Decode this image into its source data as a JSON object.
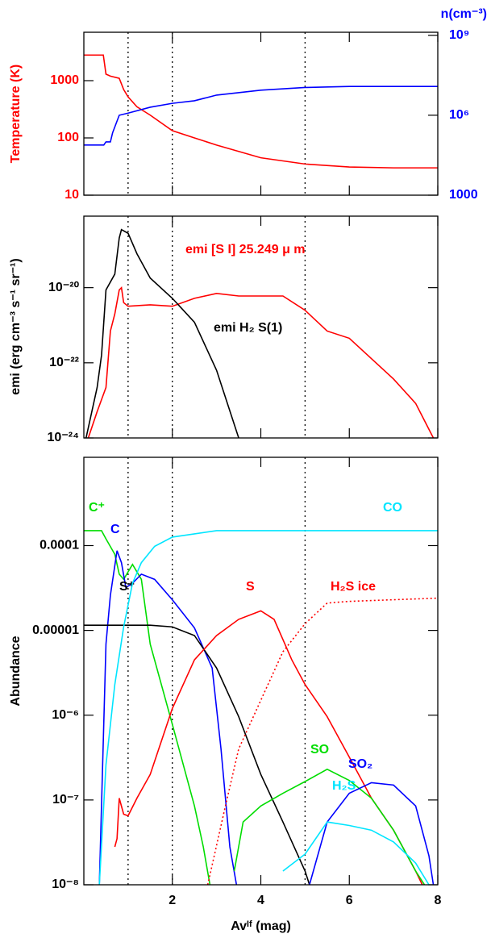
{
  "chart_data": [
    {
      "type": "line",
      "log_y": true,
      "ylabel": "Temperature (K)",
      "ylabel_color": "#ff0000",
      "y2label": "n(cm⁻³)",
      "y2label_color": "#0000ff",
      "xlim": [
        0,
        8
      ],
      "xticks": [
        2,
        4,
        6,
        8
      ],
      "vlines": [
        1,
        2,
        5
      ],
      "ylim": [
        10,
        7000
      ],
      "yticks": [
        10,
        100,
        1000
      ],
      "y2lim": [
        1000,
        1300000000
      ],
      "y2ticks": [
        1000,
        {
          "value": 1000000,
          "label": "10⁶"
        },
        {
          "value": 1000000000,
          "label": "10⁹"
        }
      ],
      "series": [
        {
          "color": "#ff0000",
          "axis": "y",
          "x": [
            0,
            0.44,
            0.5,
            0.6,
            0.8,
            0.9,
            1.0,
            1.2,
            1.5,
            2,
            2.5,
            3,
            4,
            5,
            6,
            7,
            8
          ],
          "values": [
            2800,
            2800,
            1300,
            1200,
            1100,
            700,
            520,
            350,
            250,
            134,
            100,
            75,
            45,
            35,
            31,
            30,
            30
          ]
        },
        {
          "color": "#0000ff",
          "axis": "y2",
          "x": [
            0,
            0.45,
            0.5,
            0.6,
            0.65,
            0.8,
            1.0,
            1.5,
            2,
            2.5,
            3,
            4,
            5,
            6,
            8
          ],
          "values": [
            76000,
            76000,
            100000,
            100000,
            220000,
            1000000,
            1200000,
            2000000,
            2800000,
            3500000,
            5700000,
            8700000,
            11000000,
            12000000,
            12000000
          ]
        }
      ]
    },
    {
      "type": "line",
      "log_y": true,
      "ylabel": "emi (erg cm⁻³ s⁻¹ sr⁻¹)",
      "ylabel_color": "#000000",
      "xlim": [
        0,
        8
      ],
      "xticks": [
        2,
        4,
        6,
        8
      ],
      "vlines": [
        1,
        2,
        5
      ],
      "ylim": [
        1e-24,
        8e-19
      ],
      "yticks": [
        {
          "value": 1e-24,
          "label": "10⁻²⁴"
        },
        {
          "value": 1e-22,
          "label": "10⁻²²"
        },
        {
          "value": 1e-20,
          "label": "10⁻²⁰"
        }
      ],
      "series": [
        {
          "name": "emi [S I] 25.249 μ m",
          "color": "#ff0000",
          "x": [
            0.1,
            0.3,
            0.5,
            0.6,
            0.7,
            0.8,
            0.85,
            0.9,
            1.0,
            1.5,
            2,
            2.5,
            3,
            3.5,
            4,
            4.5,
            5,
            5.5,
            6,
            7,
            7.5,
            7.9
          ],
          "values": [
            1e-24,
            5e-24,
            2.2e-23,
            7e-22,
            2e-21,
            8.7e-21,
            1e-20,
            4e-21,
            3.2e-21,
            3.5e-21,
            3.2e-21,
            5.2e-21,
            7e-21,
            6e-21,
            6e-21,
            6e-21,
            2.5e-21,
            7e-22,
            4.5e-22,
            3.7e-23,
            8.3e-24,
            1e-24
          ]
        },
        {
          "name": "emi H₂ S(1)",
          "color": "#000000",
          "x": [
            0.05,
            0.3,
            0.4,
            0.5,
            0.7,
            0.8,
            0.85,
            1.0,
            1.2,
            1.5,
            2,
            2.5,
            3,
            3.5
          ],
          "values": [
            1e-24,
            2.2e-23,
            1.6e-22,
            8.7e-21,
            2.3e-20,
            2.1e-19,
            3.5e-19,
            2.8e-19,
            8e-20,
            1.8e-20,
            5.2e-21,
            1.2e-21,
            6.3e-23,
            1e-24
          ]
        }
      ]
    },
    {
      "type": "line",
      "log_y": true,
      "ylabel": "Abundance",
      "ylabel_color": "#000000",
      "xlabel": "Avᴵᶠ (mag)",
      "xlim": [
        0,
        8
      ],
      "xticks": [
        2,
        4,
        6,
        8
      ],
      "vlines": [
        1,
        2,
        5
      ],
      "ylim": [
        1e-08,
        0.0011
      ],
      "yticks": [
        {
          "value": 1e-08,
          "label": "10⁻⁸"
        },
        {
          "value": 1e-07,
          "label": "10⁻⁷"
        },
        {
          "value": 1e-06,
          "label": "10⁻⁶"
        },
        1e-05,
        0.0001
      ],
      "series": [
        {
          "name": "C⁺",
          "color": "#00dd00",
          "x": [
            0,
            0.4,
            0.5,
            0.7,
            0.8,
            0.9,
            1.1,
            1.3,
            1.5,
            2,
            2.5,
            2.7,
            2.85
          ],
          "values": [
            0.00015,
            0.00015,
            0.00012,
            7.9e-05,
            4.6e-05,
            4e-05,
            6e-05,
            4e-05,
            6.9e-06,
            7.8e-07,
            8.5e-08,
            2.8e-08,
            1e-08
          ]
        },
        {
          "name": "C",
          "color": "#0000ff",
          "x": [
            0.35,
            0.45,
            0.5,
            0.6,
            0.75,
            0.85,
            0.95,
            1.1,
            1.3,
            1.6,
            2,
            2.5,
            2.9,
            3.1,
            3.3,
            3.45
          ],
          "values": [
            1e-08,
            7.8e-07,
            6.9e-06,
            2.6e-05,
            8.7e-05,
            6.3e-05,
            3.2e-05,
            3.6e-05,
            4.6e-05,
            4e-05,
            2.3e-05,
            1.07e-05,
            3.6e-06,
            4e-07,
            2.8e-08,
            1e-08
          ]
        },
        {
          "name": "S⁺",
          "color": "#000000",
          "x": [
            0,
            1.5,
            2,
            2.5,
            3,
            3.5,
            4,
            4.5,
            5,
            5.1
          ],
          "values": [
            1.15e-05,
            1.15e-05,
            1.1e-05,
            8.7e-06,
            3.6e-06,
            9.6e-07,
            2e-07,
            5.5e-08,
            1.45e-08,
            1e-08
          ]
        },
        {
          "name": "CO",
          "color": "#00e5ff",
          "x": [
            0.35,
            0.5,
            0.7,
            0.9,
            1.1,
            1.3,
            1.6,
            2,
            3,
            8
          ],
          "values": [
            1e-08,
            2.6e-07,
            2.3e-06,
            1.1e-05,
            3.6e-05,
            6.3e-05,
            9.8e-05,
            0.000126,
            0.00015,
            0.00015
          ]
        },
        {
          "name": "S",
          "color": "#ff0000",
          "x": [
            0.7,
            0.75,
            0.8,
            0.9,
            1.0,
            1.2,
            1.5,
            2,
            2.5,
            3,
            3.5,
            4,
            4.3,
            4.7,
            5,
            5.5,
            6,
            6.5,
            7,
            7.5,
            7.65
          ],
          "values": [
            2.8e-08,
            3.5e-08,
            1.05e-07,
            6.8e-08,
            6.5e-08,
            1.05e-07,
            2e-07,
            1.2e-06,
            4.5e-06,
            8.7e-06,
            1.35e-05,
            1.7e-05,
            1.35e-05,
            4.5e-06,
            2.3e-06,
            9.6e-07,
            3.2e-07,
            1.05e-07,
            4.4e-08,
            1.45e-08,
            1e-08
          ]
        },
        {
          "name": "H₂S ice",
          "color": "#ff0000",
          "linestyle": "dotted",
          "x": [
            2.8,
            3.2,
            3.5,
            4,
            4.5,
            5,
            5.5,
            6,
            7,
            8
          ],
          "values": [
            1e-08,
            8.5e-08,
            4e-07,
            1.5e-06,
            5.6e-06,
            1.2e-05,
            2.1e-05,
            2.2e-05,
            2.3e-05,
            2.4e-05
          ]
        },
        {
          "name": "SO",
          "color": "#00dd00",
          "x": [
            3.4,
            3.6,
            4,
            4.5,
            5,
            5.5,
            6,
            6.5,
            7,
            7.5,
            7.7
          ],
          "values": [
            1.45e-08,
            5.5e-08,
            8.5e-08,
            1.2e-07,
            1.65e-07,
            2.3e-07,
            1.7e-07,
            1.05e-07,
            4.4e-08,
            1.45e-08,
            1e-08
          ]
        },
        {
          "name": "SO₂",
          "color": "#0000ff",
          "x": [
            5.1,
            5.5,
            6,
            6.5,
            7,
            7.5,
            7.8,
            7.9
          ],
          "values": [
            1e-08,
            5.5e-08,
            1.2e-07,
            1.6e-07,
            1.5e-07,
            8.5e-08,
            2.2e-08,
            1e-08
          ]
        },
        {
          "name": "H₂S",
          "color": "#00e5ff",
          "x": [
            4.5,
            5,
            5.5,
            6,
            6.5,
            7,
            7.5,
            7.8
          ],
          "values": [
            1.45e-08,
            2.3e-08,
            5.5e-08,
            5e-08,
            4.4e-08,
            3.2e-08,
            1.8e-08,
            1e-08
          ]
        }
      ]
    }
  ]
}
